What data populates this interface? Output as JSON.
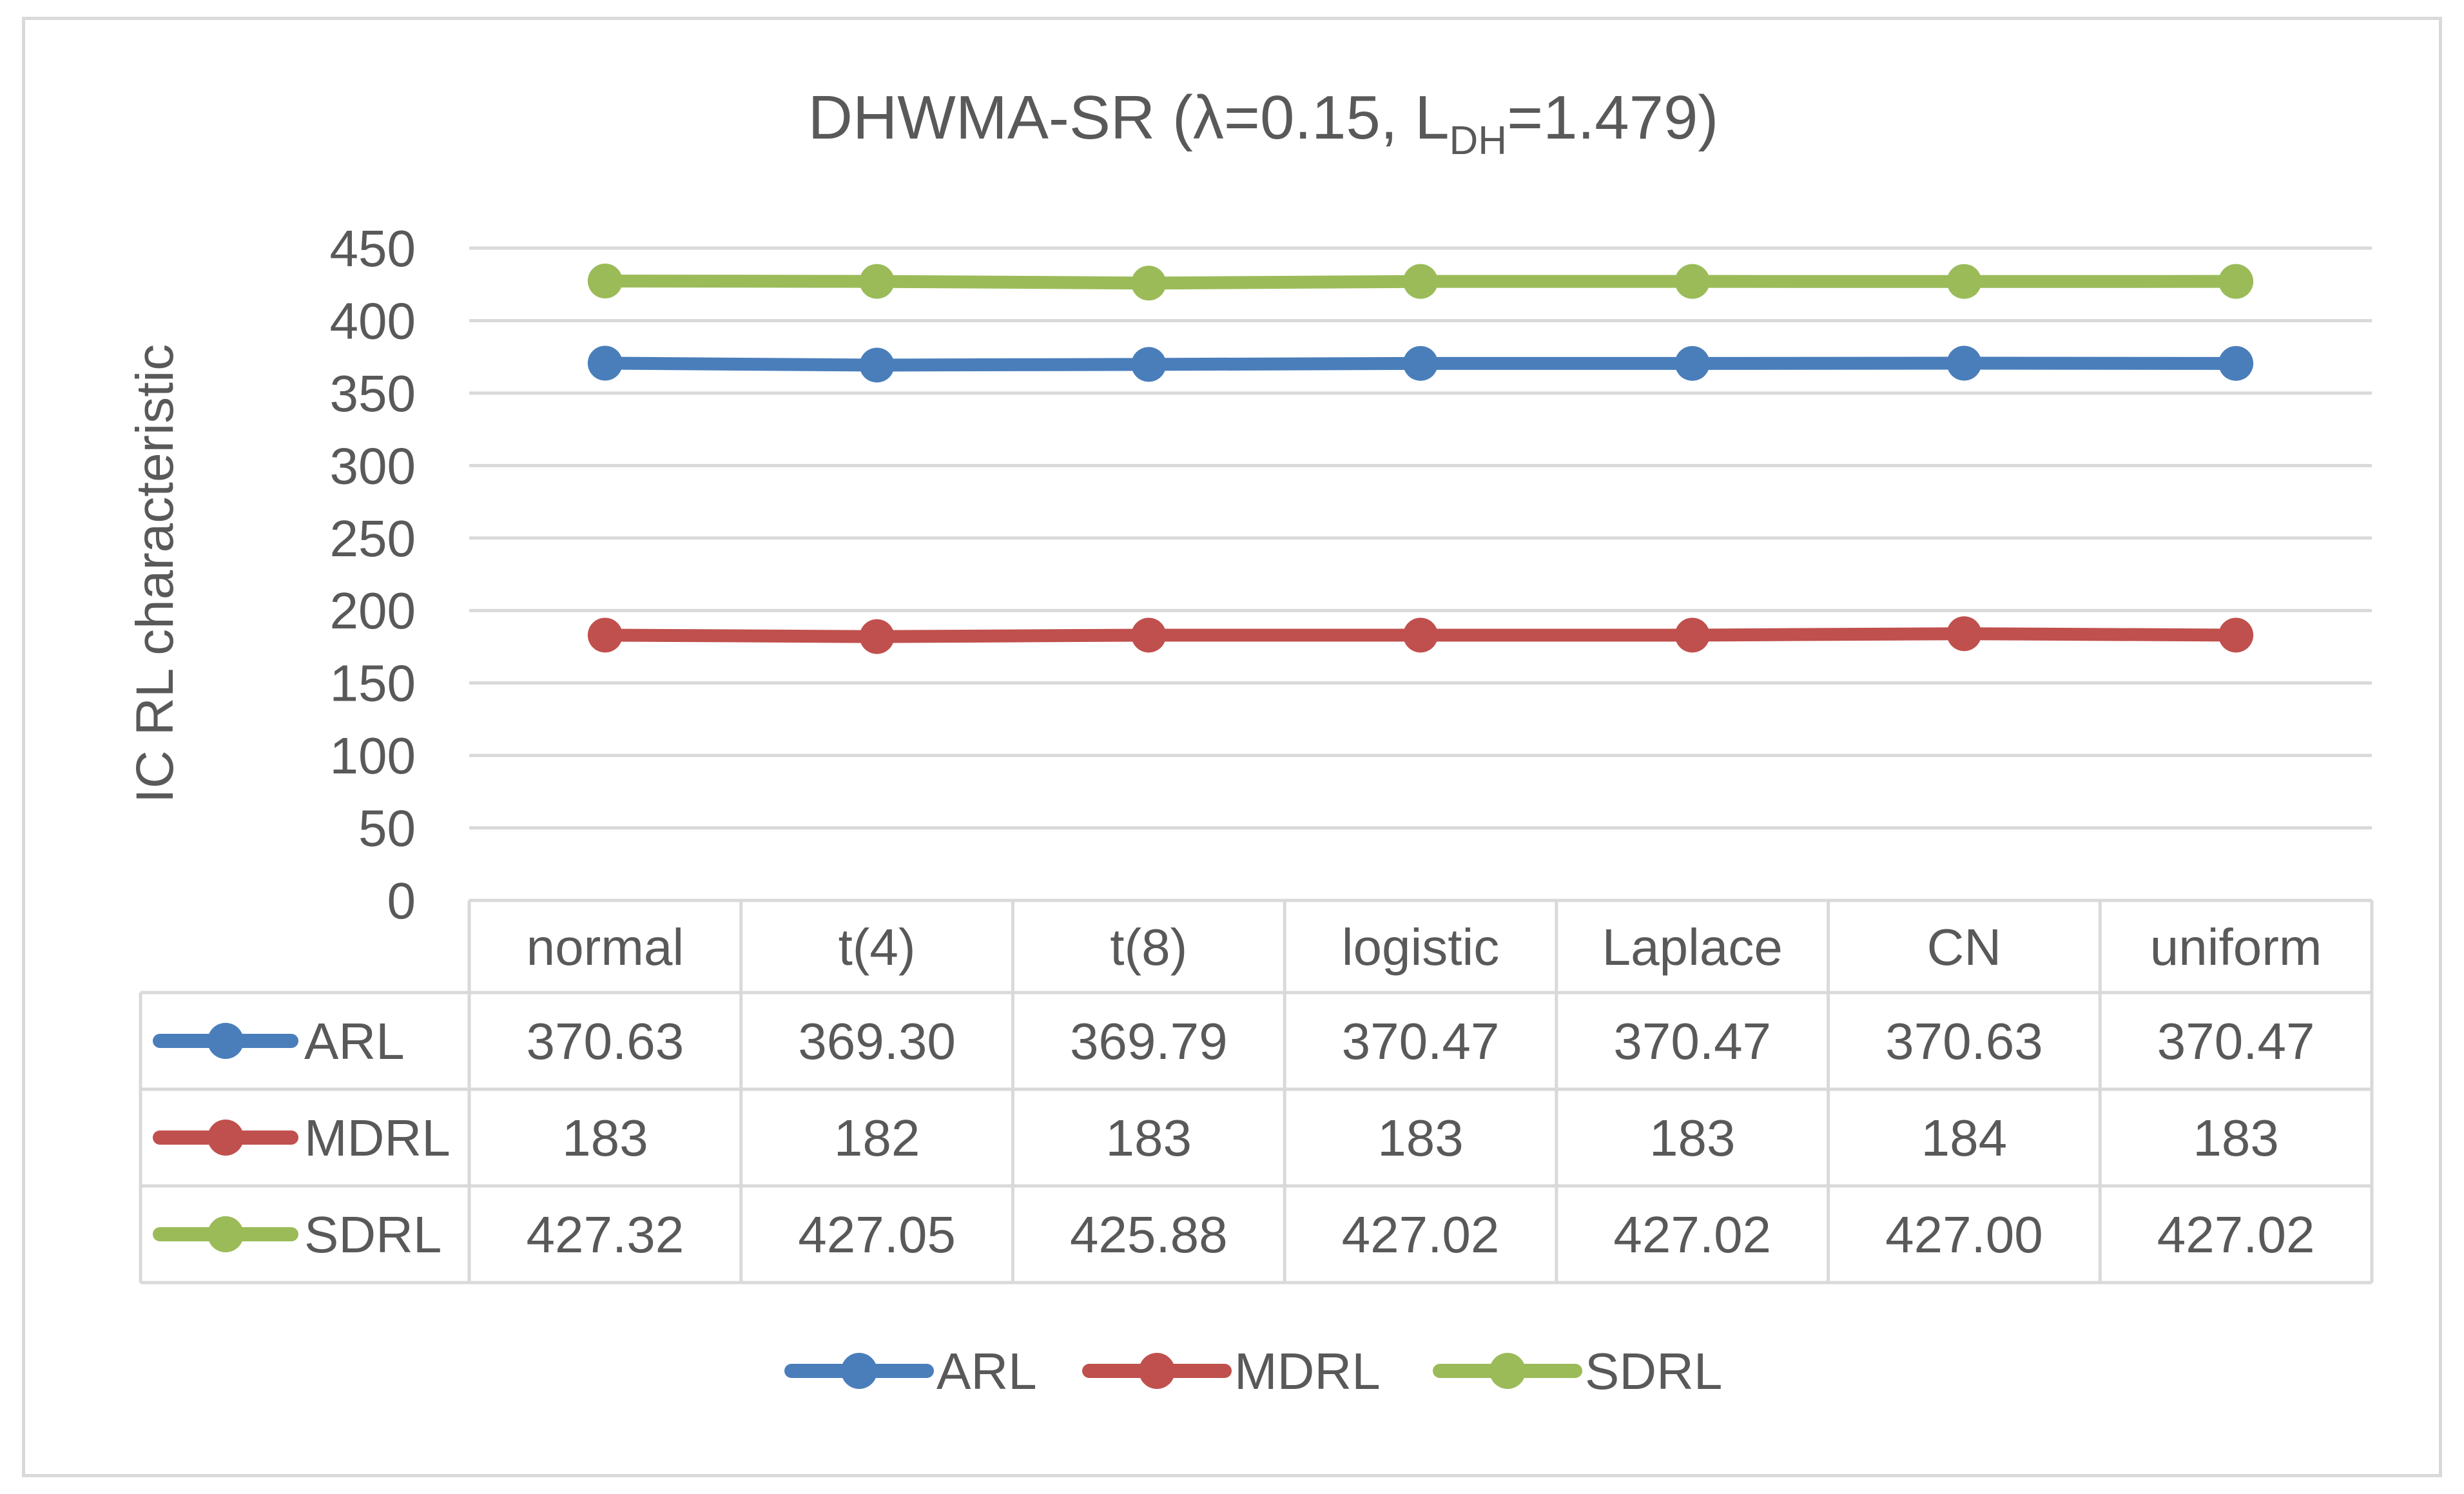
{
  "chart_data": {
    "type": "line",
    "title_main": "DHWMA-SR (λ=0.15, L",
    "title_sub": "DH",
    "title_tail": "=1.479)",
    "ylabel": "IC RL characteristic",
    "xlabel": "",
    "ylim": [
      0,
      450
    ],
    "yticks": [
      "450",
      "400",
      "350",
      "300",
      "250",
      "200",
      "150",
      "100",
      "50",
      "0"
    ],
    "grid": true,
    "legend_position": "bottom",
    "has_data_table": true,
    "categories": [
      "normal",
      "t(4)",
      "t(8)",
      "logistic",
      "Laplace",
      "CN",
      "uniform"
    ],
    "series": [
      {
        "name": "ARL",
        "color": "#4a7ebb",
        "values": [
          370.63,
          369.3,
          369.79,
          370.47,
          370.47,
          370.63,
          370.47
        ],
        "table_values": [
          "370.63",
          "369.30",
          "369.79",
          "370.47",
          "370.47",
          "370.63",
          "370.47"
        ]
      },
      {
        "name": "MDRL",
        "color": "#c0504d",
        "values": [
          183,
          182,
          183,
          183,
          183,
          184,
          183
        ],
        "table_values": [
          "183",
          "182",
          "183",
          "183",
          "183",
          "184",
          "183"
        ]
      },
      {
        "name": "SDRL",
        "color": "#9bbb59",
        "values": [
          427.32,
          427.05,
          425.88,
          427.02,
          427.02,
          427.0,
          427.02
        ],
        "table_values": [
          "427.32",
          "427.05",
          "425.88",
          "427.02",
          "427.02",
          "427.00",
          "427.02"
        ]
      }
    ]
  }
}
